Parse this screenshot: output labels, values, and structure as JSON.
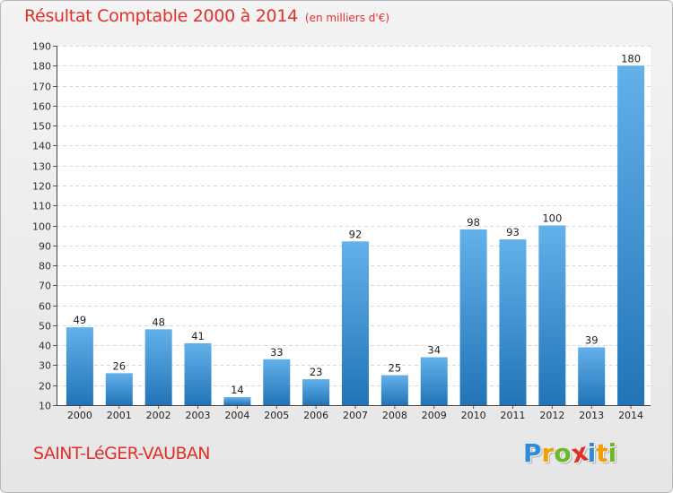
{
  "header": {
    "title": "Résultat Comptable 2000 à 2014",
    "unit": "(en milliers d'€)"
  },
  "footer": {
    "commune": "SAINT-LéGER-VAUBAN",
    "logo_letters": [
      "P",
      "r",
      "o",
      "x",
      "i",
      "t",
      "i"
    ]
  },
  "colors": {
    "title": "#e0302a",
    "bar_light": "#63b1ea",
    "bar_dark": "#2274b7",
    "logo": [
      "#2f8ad8",
      "#f0a000",
      "#6cb82c",
      "#e0302a",
      "#2f8ad8",
      "#f0a000",
      "#6cb82c"
    ]
  },
  "chart_data": {
    "type": "bar",
    "title": "Résultat Comptable 2000 à 2014",
    "xlabel": "",
    "ylabel": "(en milliers d'€)",
    "categories": [
      "2000",
      "2001",
      "2002",
      "2003",
      "2004",
      "2005",
      "2006",
      "2007",
      "2008",
      "2009",
      "2010",
      "2011",
      "2012",
      "2013",
      "2014"
    ],
    "values": [
      49,
      26,
      48,
      41,
      14,
      33,
      23,
      92,
      25,
      34,
      98,
      93,
      100,
      39,
      180
    ],
    "ylim": [
      10,
      190
    ],
    "yticks": [
      10,
      20,
      30,
      40,
      50,
      60,
      70,
      80,
      90,
      100,
      110,
      120,
      130,
      140,
      150,
      160,
      170,
      180,
      190
    ],
    "grid": true
  }
}
